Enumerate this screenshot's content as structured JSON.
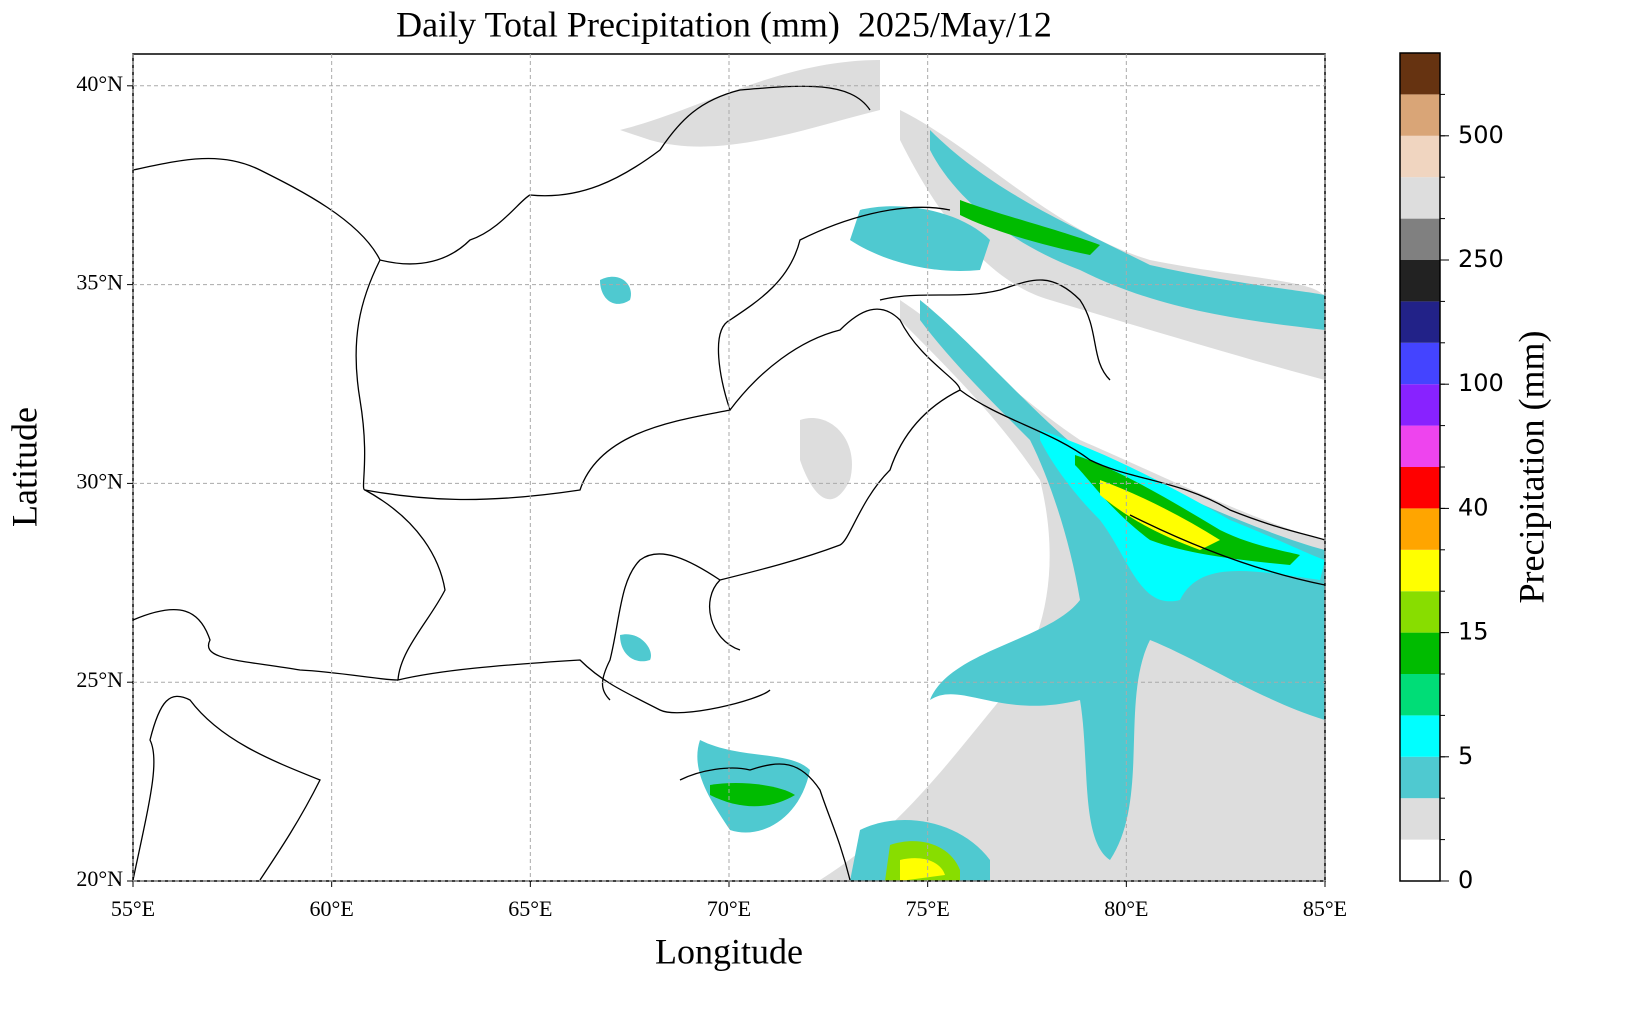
{
  "chart_data": {
    "type": "map",
    "title": "Daily Total Precipitation (mm)  2025/May/12",
    "x_label": "Longitude",
    "y_label": "Latitude",
    "xlim": [
      55,
      85
    ],
    "ylim": [
      20,
      40.8
    ],
    "xticks": [
      {
        "value": 55,
        "label": "55°E"
      },
      {
        "value": 60,
        "label": "60°E"
      },
      {
        "value": 65,
        "label": "65°E"
      },
      {
        "value": 70,
        "label": "70°E"
      },
      {
        "value": 75,
        "label": "75°E"
      },
      {
        "value": 80,
        "label": "80°E"
      },
      {
        "value": 85,
        "label": "85°E"
      }
    ],
    "yticks": [
      {
        "value": 20,
        "label": "20°N"
      },
      {
        "value": 25,
        "label": "25°N"
      },
      {
        "value": 30,
        "label": "30°N"
      },
      {
        "value": 35,
        "label": "35°N"
      },
      {
        "value": 40,
        "label": "40°N"
      }
    ],
    "grid": true,
    "colorbar": {
      "label": "Precipitation (mm)",
      "colors": [
        "#ffffff",
        "#dddddd",
        "#4fc9d0",
        "#00ffff",
        "#00dd77",
        "#00bb00",
        "#88dd00",
        "#ffff00",
        "#ffa500",
        "#ff0000",
        "#ee44ee",
        "#8822ff",
        "#4444ff",
        "#222288",
        "#222222",
        "#808080",
        "#dddddd",
        "#f0d5c0",
        "#d9a577",
        "#663311"
      ],
      "ticks": [
        0,
        5,
        15,
        40,
        100,
        250,
        500
      ]
    }
  }
}
